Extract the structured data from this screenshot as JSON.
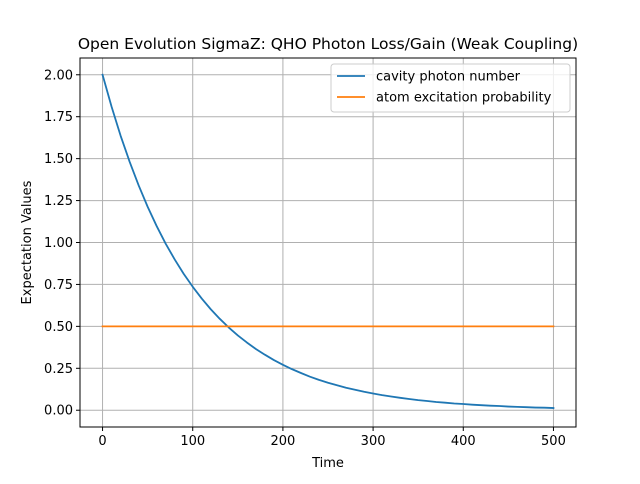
{
  "chart_data": {
    "type": "line",
    "title": "Open Evolution SigmaZ: QHO Photon Loss/Gain (Weak Coupling)",
    "xlabel": "Time",
    "ylabel": "Expectation Values",
    "xlim": [
      -25,
      525
    ],
    "ylim": [
      -0.1,
      2.1
    ],
    "xticks": [
      0,
      100,
      200,
      300,
      400,
      500
    ],
    "xtick_labels": [
      "0",
      "100",
      "200",
      "300",
      "400",
      "500"
    ],
    "yticks": [
      0,
      0.25,
      0.5,
      0.75,
      1.0,
      1.25,
      1.5,
      1.75,
      2.0
    ],
    "ytick_labels": [
      "0.00",
      "0.25",
      "0.50",
      "0.75",
      "1.00",
      "1.25",
      "1.50",
      "1.75",
      "2.00"
    ],
    "grid": true,
    "legend_position": "top-right",
    "series": [
      {
        "name": "cavity photon number",
        "color": "#1f77b4",
        "x": [
          0,
          10,
          20,
          30,
          40,
          50,
          60,
          70,
          80,
          90,
          100,
          110,
          120,
          130,
          140,
          150,
          160,
          170,
          180,
          190,
          200,
          210,
          220,
          230,
          240,
          250,
          260,
          270,
          280,
          290,
          300,
          310,
          320,
          330,
          340,
          350,
          360,
          370,
          380,
          390,
          400,
          410,
          420,
          430,
          440,
          450,
          460,
          470,
          480,
          490,
          500
        ],
        "values": [
          2.0,
          1.81,
          1.637,
          1.482,
          1.341,
          1.213,
          1.098,
          0.993,
          0.899,
          0.813,
          0.736,
          0.666,
          0.602,
          0.545,
          0.493,
          0.446,
          0.404,
          0.365,
          0.331,
          0.299,
          0.271,
          0.245,
          0.222,
          0.2,
          0.181,
          0.164,
          0.149,
          0.134,
          0.122,
          0.11,
          0.1,
          0.09,
          0.082,
          0.074,
          0.067,
          0.06,
          0.055,
          0.049,
          0.045,
          0.04,
          0.037,
          0.033,
          0.03,
          0.027,
          0.025,
          0.022,
          0.02,
          0.018,
          0.016,
          0.015,
          0.013
        ]
      },
      {
        "name": "atom excitation probability",
        "color": "#ff7f0e",
        "x": [
          0,
          500
        ],
        "values": [
          0.5,
          0.5
        ]
      }
    ]
  },
  "style": {
    "grid_color": "#b0b0b0",
    "axis_color": "#000000"
  }
}
